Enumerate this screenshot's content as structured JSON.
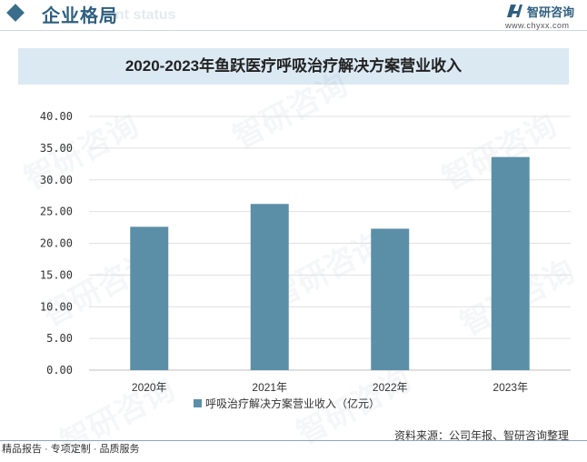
{
  "header": {
    "title": "企业格局",
    "subtitle": "ent status",
    "logo_name": "智研咨询",
    "logo_url": "www.chyxx.com"
  },
  "watermark": "智研咨询",
  "chart_data": {
    "type": "bar",
    "title": "2020-2023年鱼跃医疗呼吸治疗解决方案营业收入",
    "categories": [
      "2020年",
      "2021年",
      "2022年",
      "2023年"
    ],
    "series": [
      {
        "name": "呼吸治疗解决方案营业收入（亿元）",
        "values": [
          22.6,
          26.2,
          22.3,
          33.6
        ]
      }
    ],
    "ylim": [
      0,
      40
    ],
    "yticks": [
      "0.00",
      "5.00",
      "10.00",
      "15.00",
      "20.00",
      "25.00",
      "30.00",
      "35.00",
      "40.00"
    ],
    "grid": true,
    "legend": "bottom",
    "bar_color": "#5b8fa8"
  },
  "footer": {
    "source": "资料来源：公司年报、智研咨询整理",
    "slogan": "精品报告 · 专项定制 · 品质服务"
  }
}
